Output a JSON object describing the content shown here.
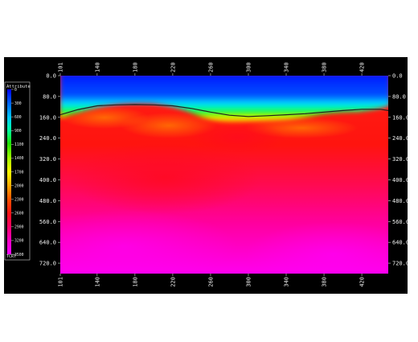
{
  "chart_data": {
    "type": "heatmap",
    "x_ticks": [
      "101",
      "140",
      "180",
      "220",
      "260",
      "300",
      "340",
      "380",
      "420"
    ],
    "y_ticks": [
      "0.0",
      "80.0",
      "160.0",
      "240.0",
      "320.0",
      "400.0",
      "480.0",
      "560.0",
      "640.0",
      "720.0"
    ],
    "xlim": [
      101,
      448
    ],
    "ylim": [
      0,
      760
    ],
    "colorbar": {
      "title": "Attribute",
      "ticks": [
        "0",
        "300",
        "600",
        "900",
        "1100",
        "1400",
        "1700",
        "2000",
        "2300",
        "2600",
        "2900",
        "3200",
        "3500"
      ],
      "unit": "TCRT",
      "range": [
        0,
        3500
      ],
      "colors": [
        "#0000ff",
        "#0060ff",
        "#00c8ff",
        "#00ffa0",
        "#20e000",
        "#a8ff00",
        "#ffff00",
        "#ffb000",
        "#ff5000",
        "#ff1414",
        "#ff0064",
        "#ff00c8",
        "#ff00ff"
      ]
    },
    "horizon_line": {
      "x": [
        101,
        120,
        140,
        160,
        180,
        200,
        220,
        240,
        260,
        280,
        300,
        320,
        340,
        360,
        380,
        400,
        420,
        440,
        448
      ],
      "y": [
        150,
        130,
        116,
        112,
        111,
        112,
        116,
        126,
        140,
        152,
        157,
        154,
        150,
        146,
        140,
        134,
        129,
        129,
        134
      ]
    }
  }
}
